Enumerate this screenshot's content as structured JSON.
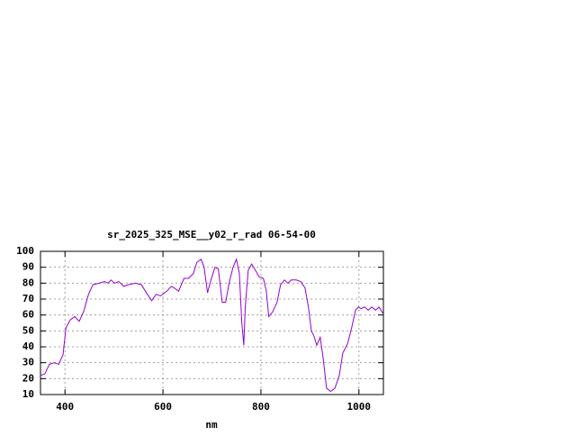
{
  "chart_data": {
    "type": "line",
    "title": "sr_2025_325_MSE__y02_r_rad 06-54-00",
    "x_label": "nm",
    "xlim": [
      350,
      1050
    ],
    "xticks": [
      400,
      600,
      800,
      1000
    ],
    "ylim": [
      10,
      100
    ],
    "yticks": [
      10,
      20,
      30,
      40,
      50,
      60,
      70,
      80,
      90,
      100
    ],
    "grid": true,
    "series": [
      {
        "color": "#9400d3",
        "x": [
          350,
          359,
          368,
          378,
          387,
          396,
          402,
          411,
          420,
          429,
          438,
          448,
          457,
          470,
          481,
          488,
          494,
          501,
          510,
          520,
          529,
          544,
          556,
          566,
          577,
          586,
          595,
          608,
          617,
          623,
          632,
          643,
          652,
          662,
          669,
          678,
          684,
          691,
          698,
          706,
          713,
          721,
          728,
          735,
          743,
          750,
          756,
          761,
          765,
          768,
          774,
          781,
          789,
          796,
          805,
          811,
          816,
          824,
          833,
          840,
          848,
          855,
          862,
          872,
          881,
          890,
          897,
          903,
          908,
          914,
          921,
          927,
          934,
          942,
          951,
          960,
          967,
          977,
          986,
          993,
          999,
          1004,
          1012,
          1019,
          1026,
          1034,
          1041,
          1049
        ],
        "values": [
          22,
          23,
          29,
          30,
          29,
          35,
          52,
          57,
          59,
          56,
          62,
          73,
          79,
          80,
          81,
          80,
          82,
          80,
          81,
          78,
          79,
          80,
          79,
          74,
          69,
          73,
          72,
          75,
          78,
          77,
          75,
          83,
          83,
          86,
          93,
          95,
          90,
          74,
          82,
          90,
          89,
          68,
          68,
          80,
          90,
          95,
          86,
          55,
          41,
          65,
          88,
          92,
          88,
          84,
          83,
          75,
          59,
          62,
          68,
          79,
          82,
          80,
          82,
          82,
          81,
          77,
          65,
          50,
          47,
          41,
          46,
          33,
          14,
          12,
          14,
          22,
          36,
          42,
          53,
          63,
          65,
          64,
          65,
          63,
          65,
          63,
          65,
          61
        ]
      }
    ]
  }
}
